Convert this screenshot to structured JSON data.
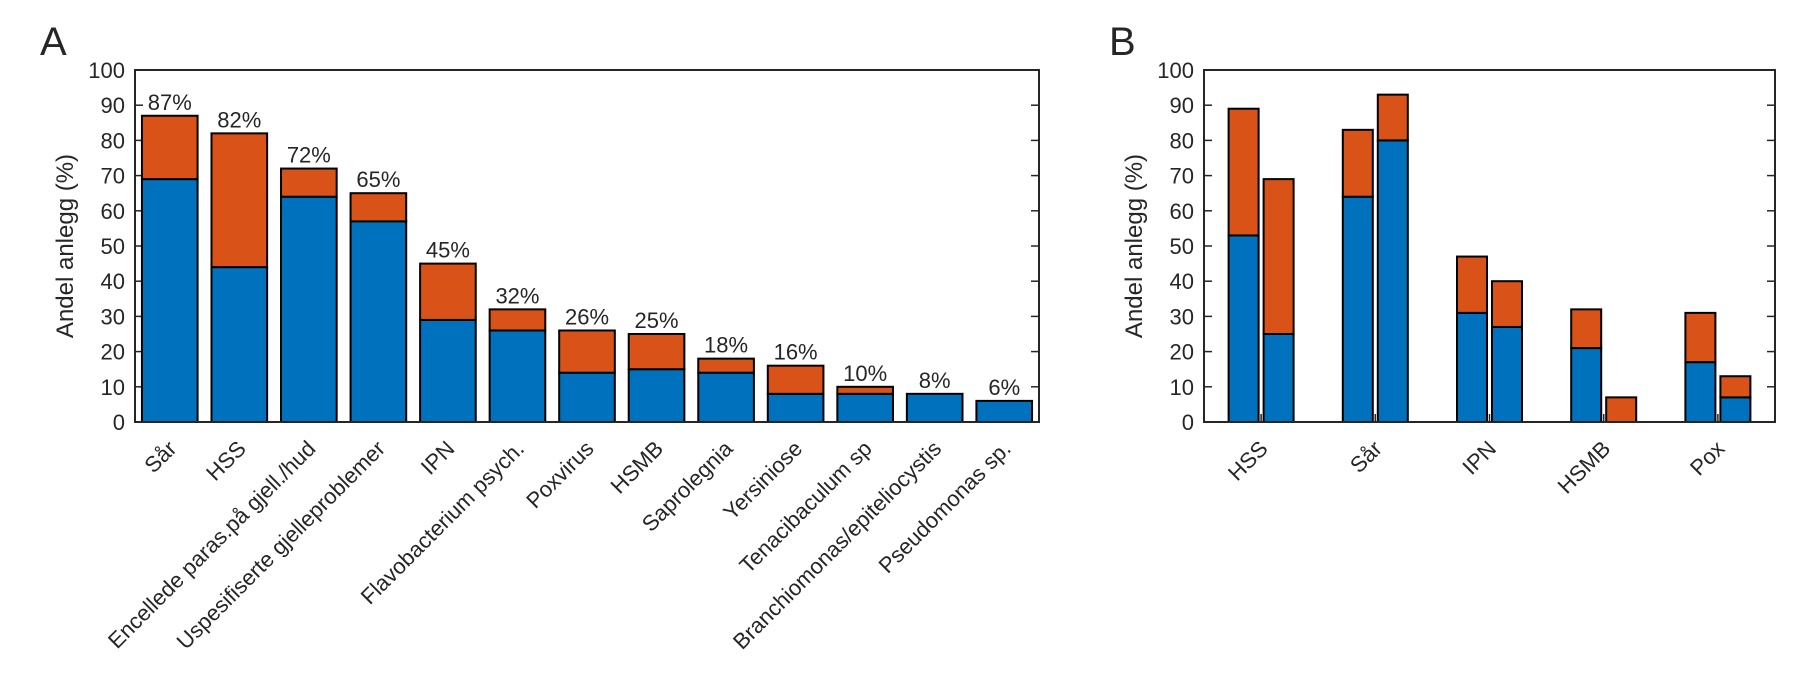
{
  "chart_data": [
    {
      "type": "stacked_bar",
      "title": "A",
      "ylabel": "Andel anlegg (%)",
      "categories": [
        "Sår",
        "HSS",
        "Encellede paras.på gjell./hud",
        "Uspesifiserte gjelleproblemer",
        "IPN",
        "Flavobacterium psych.",
        "Poxvirus",
        "HSMB",
        "Saprolegnia",
        "Yersiniose",
        "Tenacibaculum sp",
        "Branchiomonas/epiteliocystis",
        "Pseudomonas sp."
      ],
      "series": [
        {
          "color": "#0072bd",
          "values": [
            69,
            44,
            64,
            57,
            29,
            26,
            14,
            15,
            14,
            8,
            8,
            8,
            6
          ]
        },
        {
          "color": "#d95319",
          "values": [
            18,
            38,
            8,
            8,
            16,
            6,
            12,
            10,
            4,
            8,
            2,
            0,
            0
          ]
        }
      ],
      "total_labels": [
        "87%",
        "82%",
        "72%",
        "65%",
        "45%",
        "32%",
        "26%",
        "25%",
        "18%",
        "16%",
        "10%",
        "8%",
        "6%"
      ],
      "ylim": [
        0,
        100
      ],
      "yticks": [
        0,
        10,
        20,
        30,
        40,
        50,
        60,
        70,
        80,
        90,
        100
      ]
    },
    {
      "type": "grouped_stacked_bar",
      "title": "B",
      "ylabel": "Andel anlegg (%)",
      "categories": [
        "HSS",
        "Sår",
        "IPN",
        "HSMB",
        "Pox"
      ],
      "series": [
        {
          "color": "#0072bd",
          "stack": 0,
          "values": [
            53,
            64,
            31,
            21,
            17
          ]
        },
        {
          "color": "#d95319",
          "stack": 0,
          "values": [
            36,
            19,
            16,
            11,
            14
          ]
        },
        {
          "color": "#0072bd",
          "stack": 1,
          "values": [
            25,
            80,
            27,
            0,
            7
          ]
        },
        {
          "color": "#d95319",
          "stack": 1,
          "values": [
            44,
            13,
            13,
            7,
            6
          ]
        }
      ],
      "ylim": [
        0,
        100
      ],
      "yticks": [
        0,
        10,
        20,
        30,
        40,
        50,
        60,
        70,
        80,
        90,
        100
      ]
    }
  ]
}
